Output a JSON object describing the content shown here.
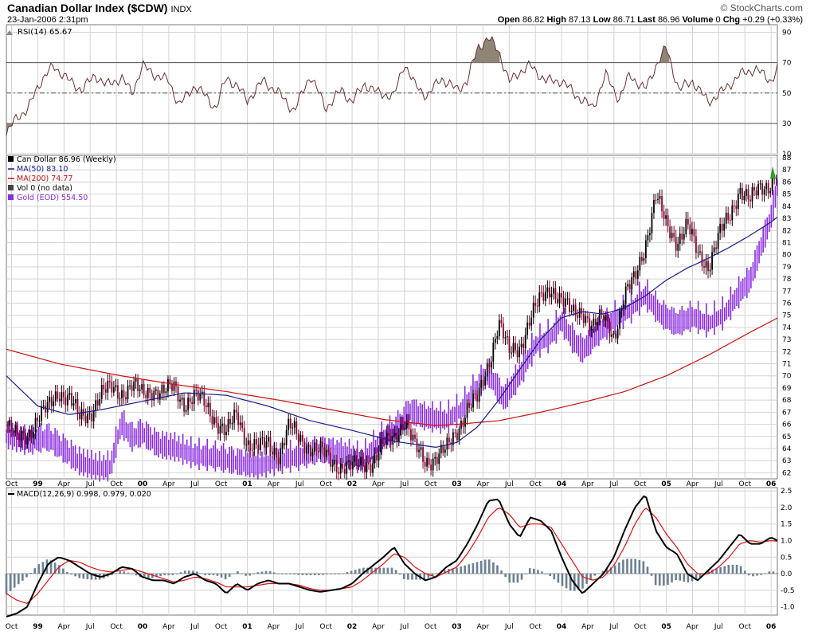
{
  "header": {
    "title": "Canadian Dollar Index ($CDW)",
    "exchange": "INDX",
    "copyright": "© StockCharts.com",
    "date": "23-Jan-2006 2:31pm",
    "quote": [
      {
        "label": "Open",
        "value": "86.82"
      },
      {
        "label": "High",
        "value": "87.13"
      },
      {
        "label": "Low",
        "value": "86.71"
      },
      {
        "label": "Last",
        "value": "86.96"
      },
      {
        "label": "Volume",
        "value": "0"
      },
      {
        "label": "Chg",
        "value": "+0.29 (+0.33%)"
      }
    ]
  },
  "legend": {
    "rsi": "RSI(14) 65.67",
    "price": "Can Dollar 86.96 (Weekly)",
    "ma50": "MA(50) 83.10",
    "ma200": "MA(200) 74.77",
    "vol": "Vol 0 (no data)",
    "gold": "Gold (EOD) 554.50",
    "macd": "MACD(12,26,9) 0.998, 0.979, 0.020"
  },
  "colors": {
    "up": "#000000",
    "down": "#8B0033",
    "ma50": "#1a1a8c",
    "ma200": "#cc1111",
    "gold": "#8a2be2",
    "rsi": "#6b2f2f",
    "rsi_fill": "#8f8577",
    "macd": "#000000",
    "signal": "#e01010",
    "hist": "#6c7f94",
    "grid": "#d4d4d4"
  },
  "x_axis": {
    "ticks": [
      "Oct",
      "99",
      "Apr",
      "Jul",
      "Oct",
      "00",
      "Apr",
      "Jul",
      "Oct",
      "01",
      "Apr",
      "Jul",
      "Oct",
      "02",
      "Apr",
      "Jul",
      "Oct",
      "03",
      "Apr",
      "Jul",
      "Oct",
      "04",
      "Apr",
      "Jul",
      "Oct",
      "05",
      "Apr",
      "Jul",
      "Oct",
      "06"
    ],
    "year_ticks": [
      "99",
      "00",
      "01",
      "02",
      "03",
      "04",
      "05",
      "06"
    ]
  },
  "chart_data": [
    {
      "type": "line",
      "name": "RSI(14)",
      "ylim": [
        10,
        95
      ],
      "yticks": [
        "90",
        "70",
        "50",
        "30",
        "10"
      ],
      "ref_lines": [
        30,
        50,
        70
      ],
      "time_range": [
        1998.7,
        2006.06
      ],
      "x": [
        1998.7,
        1998.8,
        1998.9,
        1999.0,
        1999.15,
        1999.3,
        1999.42,
        1999.55,
        1999.65,
        1999.8,
        1999.9,
        2000.0,
        2000.12,
        2000.25,
        2000.35,
        2000.5,
        2000.6,
        2000.7,
        2000.8,
        2000.9,
        2001.0,
        2001.15,
        2001.3,
        2001.45,
        2001.6,
        2001.75,
        2001.9,
        2002.0,
        2002.12,
        2002.25,
        2002.4,
        2002.5,
        2002.6,
        2002.72,
        2002.85,
        2003.0,
        2003.1,
        2003.2,
        2003.3,
        2003.4,
        2003.5,
        2003.6,
        2003.7,
        2003.85,
        2004.0,
        2004.15,
        2004.3,
        2004.42,
        2004.55,
        2004.65,
        2004.8,
        2004.9,
        2005.0,
        2005.12,
        2005.25,
        2005.4,
        2005.55,
        2005.7,
        2005.85,
        2006.0,
        2006.06
      ],
      "values": [
        22,
        35,
        38,
        55,
        68,
        58,
        52,
        62,
        55,
        60,
        50,
        68,
        62,
        58,
        42,
        55,
        48,
        40,
        60,
        55,
        45,
        58,
        50,
        38,
        62,
        40,
        52,
        44,
        56,
        50,
        48,
        70,
        55,
        48,
        60,
        52,
        58,
        80,
        86,
        78,
        57,
        64,
        68,
        58,
        58,
        48,
        40,
        62,
        46,
        62,
        52,
        68,
        80,
        52,
        58,
        44,
        52,
        62,
        66,
        58,
        65.67
      ],
      "series_note": "weekly RSI estimated from chart"
    },
    {
      "type": "line",
      "name": "Can Dollar (Weekly)",
      "ylim": [
        61.5,
        88.2
      ],
      "yticks": [
        62,
        63,
        64,
        65,
        66,
        67,
        68,
        69,
        70,
        71,
        72,
        73,
        74,
        75,
        76,
        77,
        78,
        79,
        80,
        81,
        82,
        83,
        84,
        85,
        86,
        87,
        88
      ],
      "series": [
        {
          "name": "Can Dollar 86.96 (Weekly)",
          "x": [
            1998.7,
            1998.8,
            1998.9,
            1999.0,
            1999.1,
            1999.2,
            1999.3,
            1999.4,
            1999.5,
            1999.6,
            1999.7,
            1999.8,
            1999.9,
            2000.0,
            2000.1,
            2000.2,
            2000.3,
            2000.4,
            2000.5,
            2000.6,
            2000.7,
            2000.8,
            2000.9,
            2001.0,
            2001.1,
            2001.2,
            2001.3,
            2001.4,
            2001.5,
            2001.6,
            2001.7,
            2001.8,
            2001.9,
            2002.0,
            2002.1,
            2002.2,
            2002.3,
            2002.4,
            2002.5,
            2002.6,
            2002.7,
            2002.8,
            2002.9,
            2003.0,
            2003.1,
            2003.2,
            2003.3,
            2003.4,
            2003.5,
            2003.6,
            2003.7,
            2003.8,
            2003.9,
            2004.0,
            2004.1,
            2004.2,
            2004.3,
            2004.4,
            2004.5,
            2004.6,
            2004.7,
            2004.8,
            2004.9,
            2005.0,
            2005.1,
            2005.2,
            2005.3,
            2005.4,
            2005.5,
            2005.6,
            2005.7,
            2005.8,
            2005.9,
            2006.0,
            2006.06
          ],
          "values": [
            66.0,
            64.8,
            65.2,
            66.5,
            67.3,
            68.8,
            68.2,
            66.4,
            67.0,
            68.5,
            68.9,
            68.7,
            69.2,
            68.4,
            69.0,
            68.6,
            69.0,
            67.8,
            68.3,
            67.6,
            66.4,
            65.2,
            66.8,
            64.6,
            64.0,
            64.4,
            63.6,
            65.8,
            64.8,
            64.2,
            63.7,
            63.0,
            62.6,
            62.4,
            62.8,
            63.0,
            64.2,
            65.0,
            66.4,
            64.0,
            63.0,
            63.3,
            63.8,
            65.5,
            67.4,
            68.0,
            71.0,
            74.5,
            71.8,
            72.4,
            74.8,
            76.2,
            77.4,
            76.3,
            75.0,
            75.5,
            74.0,
            74.8,
            73.4,
            76.5,
            78.0,
            81.0,
            84.8,
            82.4,
            81.2,
            82.4,
            80.0,
            79.2,
            81.5,
            83.0,
            85.6,
            84.4,
            85.5,
            86.0,
            86.96
          ]
        },
        {
          "name": "MA(50) 83.10",
          "x": [
            1998.7,
            1999.0,
            1999.3,
            1999.6,
            2000.0,
            2000.4,
            2000.8,
            2001.2,
            2001.6,
            2002.0,
            2002.4,
            2002.8,
            2003.0,
            2003.2,
            2003.4,
            2003.6,
            2003.8,
            2004.0,
            2004.2,
            2004.4,
            2004.6,
            2004.8,
            2005.0,
            2005.2,
            2005.4,
            2005.6,
            2005.8,
            2006.0,
            2006.06
          ],
          "values": [
            70.0,
            67.5,
            66.8,
            67.2,
            67.9,
            68.6,
            68.4,
            67.5,
            66.3,
            65.5,
            64.6,
            64.1,
            64.5,
            65.8,
            68.0,
            70.5,
            73.0,
            74.8,
            75.3,
            75.1,
            75.6,
            76.6,
            77.9,
            78.9,
            79.7,
            80.6,
            81.6,
            82.7,
            83.1
          ]
        },
        {
          "name": "MA(200) 74.77",
          "x": [
            1998.7,
            1999.2,
            1999.8,
            2000.3,
            2000.8,
            2001.3,
            2001.8,
            2002.3,
            2002.8,
            2003.0,
            2003.4,
            2003.8,
            2004.2,
            2004.6,
            2005.0,
            2005.4,
            2005.8,
            2006.06
          ],
          "values": [
            72.2,
            71.0,
            70.0,
            69.3,
            68.7,
            68.0,
            67.2,
            66.4,
            65.9,
            66.0,
            66.3,
            67.0,
            67.8,
            68.7,
            70.0,
            71.7,
            73.6,
            74.77
          ]
        },
        {
          "name": "Gold (EOD) 554.50",
          "x": [
            1998.7,
            1998.9,
            1999.1,
            1999.3,
            1999.4,
            1999.55,
            1999.65,
            1999.7,
            1999.75,
            1999.8,
            1999.9,
            2000.0,
            2000.15,
            2000.3,
            2000.5,
            2000.7,
            2000.9,
            2001.1,
            2001.3,
            2001.5,
            2001.7,
            2001.9,
            2002.1,
            2002.3,
            2002.45,
            2002.55,
            2002.7,
            2002.9,
            2003.05,
            2003.15,
            2003.3,
            2003.45,
            2003.6,
            2003.75,
            2003.9,
            2004.0,
            2004.1,
            2004.2,
            2004.35,
            2004.5,
            2004.65,
            2004.8,
            2004.95,
            2005.1,
            2005.25,
            2005.4,
            2005.55,
            2005.7,
            2005.8,
            2005.9,
            2006.0,
            2006.06
          ],
          "values": [
            65.0,
            64.5,
            64.8,
            63.5,
            62.8,
            62.4,
            62.3,
            62.5,
            64.5,
            66.0,
            64.8,
            65.2,
            64.2,
            64.0,
            63.4,
            63.2,
            62.8,
            62.5,
            63.0,
            63.3,
            63.8,
            63.5,
            63.0,
            64.8,
            65.8,
            67.0,
            66.5,
            66.3,
            67.2,
            68.5,
            70.2,
            68.0,
            70.0,
            72.5,
            73.2,
            74.5,
            73.0,
            72.0,
            73.5,
            74.6,
            75.4,
            76.6,
            75.0,
            74.2,
            74.8,
            74.3,
            75.0,
            76.8,
            77.8,
            80.5,
            83.0,
            85.5
          ]
        }
      ]
    },
    {
      "type": "line",
      "name": "MACD(12,26,9)",
      "ylim": [
        -1.25,
        2.6
      ],
      "yticks": [
        2.5,
        2.0,
        1.5,
        1.0,
        0.5,
        0.0,
        -0.5,
        -1.0
      ],
      "series": [
        {
          "name": "MACD",
          "x": [
            1998.7,
            1998.8,
            1998.9,
            1999.0,
            1999.1,
            1999.2,
            1999.3,
            1999.4,
            1999.5,
            1999.6,
            1999.7,
            1999.8,
            1999.9,
            2000.0,
            2000.1,
            2000.2,
            2000.3,
            2000.4,
            2000.5,
            2000.6,
            2000.7,
            2000.8,
            2000.9,
            2001.0,
            2001.1,
            2001.2,
            2001.3,
            2001.4,
            2001.5,
            2001.6,
            2001.7,
            2001.8,
            2001.9,
            2002.0,
            2002.1,
            2002.2,
            2002.3,
            2002.4,
            2002.5,
            2002.6,
            2002.7,
            2002.8,
            2002.9,
            2003.0,
            2003.1,
            2003.2,
            2003.3,
            2003.4,
            2003.5,
            2003.6,
            2003.7,
            2003.8,
            2003.9,
            2004.0,
            2004.1,
            2004.2,
            2004.3,
            2004.4,
            2004.5,
            2004.6,
            2004.7,
            2004.8,
            2004.9,
            2005.0,
            2005.1,
            2005.2,
            2005.3,
            2005.4,
            2005.5,
            2005.6,
            2005.7,
            2005.8,
            2005.9,
            2006.0,
            2006.06
          ],
          "values": [
            -1.3,
            -1.2,
            -1.0,
            -0.3,
            0.3,
            0.5,
            0.4,
            0.2,
            0.0,
            -0.1,
            0.0,
            0.2,
            0.15,
            -0.1,
            -0.2,
            -0.2,
            -0.3,
            -0.1,
            0.0,
            -0.2,
            -0.3,
            -0.6,
            -0.3,
            -0.5,
            -0.3,
            -0.2,
            -0.3,
            -0.3,
            -0.4,
            -0.5,
            -0.55,
            -0.5,
            -0.45,
            -0.3,
            0.0,
            0.25,
            0.5,
            0.8,
            0.3,
            0.0,
            -0.2,
            -0.1,
            0.2,
            0.4,
            0.9,
            1.5,
            2.2,
            2.25,
            1.5,
            1.1,
            1.7,
            1.6,
            1.3,
            0.5,
            -0.2,
            -0.6,
            -0.3,
            0.0,
            0.5,
            1.3,
            2.0,
            2.4,
            1.3,
            0.8,
            0.6,
            0.0,
            -0.2,
            0.1,
            0.4,
            0.8,
            1.2,
            0.9,
            0.9,
            1.1,
            0.998
          ]
        },
        {
          "name": "Signal",
          "x": [
            1998.7,
            1998.8,
            1998.9,
            1999.0,
            1999.1,
            1999.2,
            1999.3,
            1999.4,
            1999.5,
            1999.6,
            1999.7,
            1999.8,
            1999.9,
            2000.0,
            2000.1,
            2000.2,
            2000.3,
            2000.4,
            2000.5,
            2000.6,
            2000.7,
            2000.8,
            2000.9,
            2001.0,
            2001.1,
            2001.2,
            2001.3,
            2001.4,
            2001.5,
            2001.6,
            2001.7,
            2001.8,
            2001.9,
            2002.0,
            2002.1,
            2002.2,
            2002.3,
            2002.4,
            2002.5,
            2002.6,
            2002.7,
            2002.8,
            2002.9,
            2003.0,
            2003.1,
            2003.2,
            2003.3,
            2003.4,
            2003.5,
            2003.6,
            2003.7,
            2003.8,
            2003.9,
            2004.0,
            2004.1,
            2004.2,
            2004.3,
            2004.4,
            2004.5,
            2004.6,
            2004.7,
            2004.8,
            2004.9,
            2005.0,
            2005.1,
            2005.2,
            2005.3,
            2005.4,
            2005.5,
            2005.6,
            2005.7,
            2005.8,
            2005.9,
            2006.0,
            2006.06
          ],
          "values": [
            -0.6,
            -0.8,
            -0.9,
            -0.6,
            -0.2,
            0.2,
            0.4,
            0.35,
            0.2,
            0.1,
            0.05,
            0.1,
            0.15,
            0.05,
            -0.05,
            -0.15,
            -0.25,
            -0.2,
            -0.1,
            -0.15,
            -0.25,
            -0.4,
            -0.4,
            -0.4,
            -0.35,
            -0.3,
            -0.3,
            -0.3,
            -0.35,
            -0.45,
            -0.5,
            -0.5,
            -0.45,
            -0.4,
            -0.2,
            0.05,
            0.3,
            0.6,
            0.5,
            0.2,
            0.0,
            -0.1,
            0.05,
            0.2,
            0.6,
            1.1,
            1.7,
            2.0,
            1.8,
            1.4,
            1.5,
            1.5,
            1.4,
            0.9,
            0.4,
            -0.1,
            -0.2,
            -0.1,
            0.25,
            0.8,
            1.5,
            2.0,
            1.7,
            1.2,
            0.8,
            0.3,
            0.0,
            0.0,
            0.2,
            0.5,
            0.9,
            1.0,
            0.95,
            1.0,
            0.979
          ]
        }
      ],
      "histogram_note": "MACD - Signal difference shown as bars"
    }
  ]
}
